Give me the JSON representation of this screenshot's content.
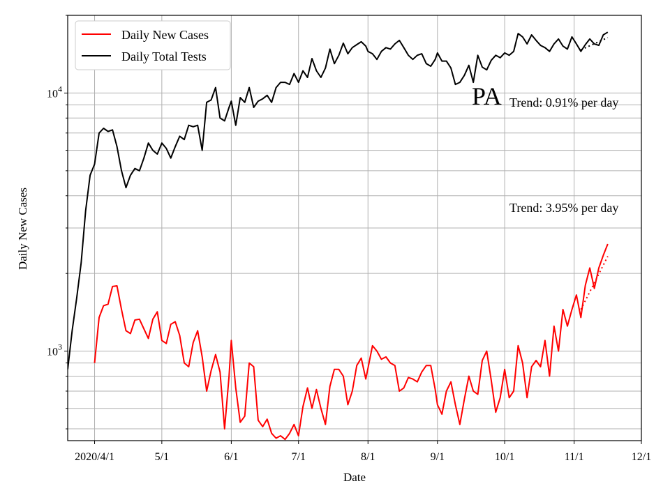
{
  "chart_data": {
    "type": "line",
    "xlabel": "Date",
    "ylabel": "Daily New Cases",
    "y_scale": "log",
    "ylim": [
      450,
      20000
    ],
    "xlim": [
      "2020-03-20",
      "2020-12-01"
    ],
    "x_ticks": [
      {
        "date": "2020-04-01",
        "label": "2020/4/1"
      },
      {
        "date": "2020-05-01",
        "label": "5/1"
      },
      {
        "date": "2020-06-01",
        "label": "6/1"
      },
      {
        "date": "2020-07-01",
        "label": "7/1"
      },
      {
        "date": "2020-08-01",
        "label": "8/1"
      },
      {
        "date": "2020-09-01",
        "label": "9/1"
      },
      {
        "date": "2020-10-01",
        "label": "10/1"
      },
      {
        "date": "2020-11-01",
        "label": "11/1"
      },
      {
        "date": "2020-12-01",
        "label": "12/1"
      }
    ],
    "y_major_ticks": [
      {
        "value": 1000,
        "base": "10",
        "exp": "3"
      },
      {
        "value": 10000,
        "base": "10",
        "exp": "4"
      }
    ],
    "grid": true,
    "legend": "top-left",
    "state_label": "PA",
    "series": [
      {
        "name": "Daily New Cases",
        "color": "#ff0000",
        "points": [
          [
            "2020-04-01",
            900
          ],
          [
            "2020-04-03",
            1350
          ],
          [
            "2020-04-05",
            1500
          ],
          [
            "2020-04-07",
            1520
          ],
          [
            "2020-04-09",
            1780
          ],
          [
            "2020-04-11",
            1790
          ],
          [
            "2020-04-13",
            1450
          ],
          [
            "2020-04-15",
            1200
          ],
          [
            "2020-04-17",
            1170
          ],
          [
            "2020-04-19",
            1320
          ],
          [
            "2020-04-21",
            1330
          ],
          [
            "2020-04-23",
            1220
          ],
          [
            "2020-04-25",
            1120
          ],
          [
            "2020-04-27",
            1330
          ],
          [
            "2020-04-29",
            1420
          ],
          [
            "2020-05-01",
            1100
          ],
          [
            "2020-05-03",
            1070
          ],
          [
            "2020-05-05",
            1270
          ],
          [
            "2020-05-07",
            1300
          ],
          [
            "2020-05-09",
            1150
          ],
          [
            "2020-05-11",
            900
          ],
          [
            "2020-05-13",
            870
          ],
          [
            "2020-05-15",
            1080
          ],
          [
            "2020-05-17",
            1200
          ],
          [
            "2020-05-19",
            950
          ],
          [
            "2020-05-21",
            700
          ],
          [
            "2020-05-23",
            840
          ],
          [
            "2020-05-25",
            970
          ],
          [
            "2020-05-27",
            830
          ],
          [
            "2020-05-29",
            500
          ],
          [
            "2020-05-31",
            800
          ],
          [
            "2020-06-01",
            1100
          ],
          [
            "2020-06-03",
            720
          ],
          [
            "2020-06-05",
            530
          ],
          [
            "2020-06-07",
            560
          ],
          [
            "2020-06-09",
            900
          ],
          [
            "2020-06-11",
            870
          ],
          [
            "2020-06-13",
            540
          ],
          [
            "2020-06-15",
            510
          ],
          [
            "2020-06-17",
            545
          ],
          [
            "2020-06-19",
            480
          ],
          [
            "2020-06-21",
            460
          ],
          [
            "2020-06-23",
            470
          ],
          [
            "2020-06-25",
            455
          ],
          [
            "2020-06-27",
            480
          ],
          [
            "2020-06-29",
            520
          ],
          [
            "2020-07-01",
            470
          ],
          [
            "2020-07-03",
            610
          ],
          [
            "2020-07-05",
            720
          ],
          [
            "2020-07-07",
            600
          ],
          [
            "2020-07-09",
            710
          ],
          [
            "2020-07-11",
            600
          ],
          [
            "2020-07-13",
            520
          ],
          [
            "2020-07-15",
            730
          ],
          [
            "2020-07-17",
            850
          ],
          [
            "2020-07-19",
            850
          ],
          [
            "2020-07-21",
            800
          ],
          [
            "2020-07-23",
            620
          ],
          [
            "2020-07-25",
            700
          ],
          [
            "2020-07-27",
            880
          ],
          [
            "2020-07-29",
            940
          ],
          [
            "2020-07-31",
            780
          ],
          [
            "2020-08-01",
            860
          ],
          [
            "2020-08-03",
            1050
          ],
          [
            "2020-08-05",
            1000
          ],
          [
            "2020-08-07",
            930
          ],
          [
            "2020-08-09",
            950
          ],
          [
            "2020-08-11",
            900
          ],
          [
            "2020-08-13",
            880
          ],
          [
            "2020-08-15",
            700
          ],
          [
            "2020-08-17",
            720
          ],
          [
            "2020-08-19",
            790
          ],
          [
            "2020-08-21",
            780
          ],
          [
            "2020-08-23",
            760
          ],
          [
            "2020-08-25",
            830
          ],
          [
            "2020-08-27",
            880
          ],
          [
            "2020-08-29",
            880
          ],
          [
            "2020-08-31",
            710
          ],
          [
            "2020-09-01",
            620
          ],
          [
            "2020-09-03",
            570
          ],
          [
            "2020-09-05",
            700
          ],
          [
            "2020-09-07",
            760
          ],
          [
            "2020-09-09",
            620
          ],
          [
            "2020-09-11",
            520
          ],
          [
            "2020-09-13",
            650
          ],
          [
            "2020-09-15",
            800
          ],
          [
            "2020-09-17",
            700
          ],
          [
            "2020-09-19",
            680
          ],
          [
            "2020-09-21",
            920
          ],
          [
            "2020-09-23",
            1000
          ],
          [
            "2020-09-25",
            770
          ],
          [
            "2020-09-27",
            580
          ],
          [
            "2020-09-29",
            660
          ],
          [
            "2020-10-01",
            850
          ],
          [
            "2020-10-03",
            660
          ],
          [
            "2020-10-05",
            700
          ],
          [
            "2020-10-07",
            1050
          ],
          [
            "2020-10-09",
            900
          ],
          [
            "2020-10-11",
            660
          ],
          [
            "2020-10-13",
            870
          ],
          [
            "2020-10-15",
            920
          ],
          [
            "2020-10-17",
            870
          ],
          [
            "2020-10-19",
            1100
          ],
          [
            "2020-10-21",
            800
          ],
          [
            "2020-10-23",
            1250
          ],
          [
            "2020-10-25",
            1000
          ],
          [
            "2020-10-27",
            1450
          ],
          [
            "2020-10-29",
            1250
          ],
          [
            "2020-10-31",
            1450
          ],
          [
            "2020-11-02",
            1650
          ],
          [
            "2020-11-04",
            1350
          ],
          [
            "2020-11-06",
            1800
          ],
          [
            "2020-11-08",
            2100
          ],
          [
            "2020-11-10",
            1750
          ],
          [
            "2020-11-12",
            2100
          ],
          [
            "2020-11-14",
            2350
          ],
          [
            "2020-11-16",
            2600
          ]
        ]
      },
      {
        "name": "Daily Total Tests",
        "color": "#000000",
        "points": [
          [
            "2020-03-20",
            850
          ],
          [
            "2020-03-22",
            1200
          ],
          [
            "2020-03-24",
            1600
          ],
          [
            "2020-03-26",
            2200
          ],
          [
            "2020-03-28",
            3500
          ],
          [
            "2020-03-30",
            4800
          ],
          [
            "2020-04-01",
            5300
          ],
          [
            "2020-04-03",
            7000
          ],
          [
            "2020-04-05",
            7300
          ],
          [
            "2020-04-07",
            7100
          ],
          [
            "2020-04-09",
            7200
          ],
          [
            "2020-04-11",
            6200
          ],
          [
            "2020-04-13",
            5000
          ],
          [
            "2020-04-15",
            4300
          ],
          [
            "2020-04-17",
            4800
          ],
          [
            "2020-04-19",
            5100
          ],
          [
            "2020-04-21",
            5000
          ],
          [
            "2020-04-23",
            5600
          ],
          [
            "2020-04-25",
            6400
          ],
          [
            "2020-04-27",
            6000
          ],
          [
            "2020-04-29",
            5800
          ],
          [
            "2020-05-01",
            6400
          ],
          [
            "2020-05-03",
            6100
          ],
          [
            "2020-05-05",
            5600
          ],
          [
            "2020-05-07",
            6200
          ],
          [
            "2020-05-09",
            6800
          ],
          [
            "2020-05-11",
            6600
          ],
          [
            "2020-05-13",
            7500
          ],
          [
            "2020-05-15",
            7400
          ],
          [
            "2020-05-17",
            7500
          ],
          [
            "2020-05-19",
            6000
          ],
          [
            "2020-05-21",
            9200
          ],
          [
            "2020-05-23",
            9400
          ],
          [
            "2020-05-25",
            10500
          ],
          [
            "2020-05-27",
            8000
          ],
          [
            "2020-05-29",
            7800
          ],
          [
            "2020-05-31",
            8800
          ],
          [
            "2020-06-01",
            9300
          ],
          [
            "2020-06-03",
            7500
          ],
          [
            "2020-06-05",
            9600
          ],
          [
            "2020-06-07",
            9200
          ],
          [
            "2020-06-09",
            10500
          ],
          [
            "2020-06-11",
            8800
          ],
          [
            "2020-06-13",
            9300
          ],
          [
            "2020-06-15",
            9500
          ],
          [
            "2020-06-17",
            9800
          ],
          [
            "2020-06-19",
            9200
          ],
          [
            "2020-06-21",
            10500
          ],
          [
            "2020-06-23",
            11000
          ],
          [
            "2020-06-25",
            11000
          ],
          [
            "2020-06-27",
            10800
          ],
          [
            "2020-06-29",
            11900
          ],
          [
            "2020-07-01",
            11000
          ],
          [
            "2020-07-03",
            12200
          ],
          [
            "2020-07-05",
            11500
          ],
          [
            "2020-07-07",
            13600
          ],
          [
            "2020-07-09",
            12200
          ],
          [
            "2020-07-11",
            11500
          ],
          [
            "2020-07-13",
            12500
          ],
          [
            "2020-07-15",
            14800
          ],
          [
            "2020-07-17",
            13000
          ],
          [
            "2020-07-19",
            14000
          ],
          [
            "2020-07-21",
            15600
          ],
          [
            "2020-07-23",
            14200
          ],
          [
            "2020-07-25",
            15000
          ],
          [
            "2020-07-27",
            15400
          ],
          [
            "2020-07-29",
            15800
          ],
          [
            "2020-07-31",
            15200
          ],
          [
            "2020-08-01",
            14500
          ],
          [
            "2020-08-03",
            14200
          ],
          [
            "2020-08-05",
            13500
          ],
          [
            "2020-08-07",
            14500
          ],
          [
            "2020-08-09",
            15000
          ],
          [
            "2020-08-11",
            14800
          ],
          [
            "2020-08-13",
            15500
          ],
          [
            "2020-08-15",
            16000
          ],
          [
            "2020-08-17",
            15000
          ],
          [
            "2020-08-19",
            14000
          ],
          [
            "2020-08-21",
            13500
          ],
          [
            "2020-08-23",
            14000
          ],
          [
            "2020-08-25",
            14200
          ],
          [
            "2020-08-27",
            13000
          ],
          [
            "2020-08-29",
            12700
          ],
          [
            "2020-08-31",
            13500
          ],
          [
            "2020-09-01",
            14300
          ],
          [
            "2020-09-03",
            13300
          ],
          [
            "2020-09-05",
            13300
          ],
          [
            "2020-09-07",
            12500
          ],
          [
            "2020-09-09",
            10800
          ],
          [
            "2020-09-11",
            11000
          ],
          [
            "2020-09-13",
            11700
          ],
          [
            "2020-09-15",
            12800
          ],
          [
            "2020-09-17",
            11000
          ],
          [
            "2020-09-19",
            14000
          ],
          [
            "2020-09-21",
            12600
          ],
          [
            "2020-09-23",
            12300
          ],
          [
            "2020-09-25",
            13400
          ],
          [
            "2020-09-27",
            14000
          ],
          [
            "2020-09-29",
            13700
          ],
          [
            "2020-10-01",
            14300
          ],
          [
            "2020-10-03",
            14000
          ],
          [
            "2020-10-05",
            14500
          ],
          [
            "2020-10-07",
            17000
          ],
          [
            "2020-10-09",
            16500
          ],
          [
            "2020-10-11",
            15500
          ],
          [
            "2020-10-13",
            16800
          ],
          [
            "2020-10-15",
            16000
          ],
          [
            "2020-10-17",
            15300
          ],
          [
            "2020-10-19",
            15000
          ],
          [
            "2020-10-21",
            14500
          ],
          [
            "2020-10-23",
            15500
          ],
          [
            "2020-10-25",
            16200
          ],
          [
            "2020-10-27",
            15200
          ],
          [
            "2020-10-29",
            14800
          ],
          [
            "2020-10-31",
            16500
          ],
          [
            "2020-11-02",
            15500
          ],
          [
            "2020-11-04",
            14500
          ],
          [
            "2020-11-06",
            15400
          ],
          [
            "2020-11-08",
            16200
          ],
          [
            "2020-11-10",
            15500
          ],
          [
            "2020-11-12",
            15300
          ],
          [
            "2020-11-14",
            16800
          ],
          [
            "2020-11-16",
            17200
          ]
        ]
      }
    ],
    "trends": [
      {
        "label": "Trend: 0.91% per day",
        "color": "#000000",
        "points": [
          [
            "2020-11-04",
            14700
          ],
          [
            "2020-11-16",
            16400
          ]
        ]
      },
      {
        "label": "Trend: 3.95% per day",
        "color": "#ff0000",
        "points": [
          [
            "2020-11-04",
            1450
          ],
          [
            "2020-11-16",
            2330
          ]
        ]
      }
    ]
  }
}
